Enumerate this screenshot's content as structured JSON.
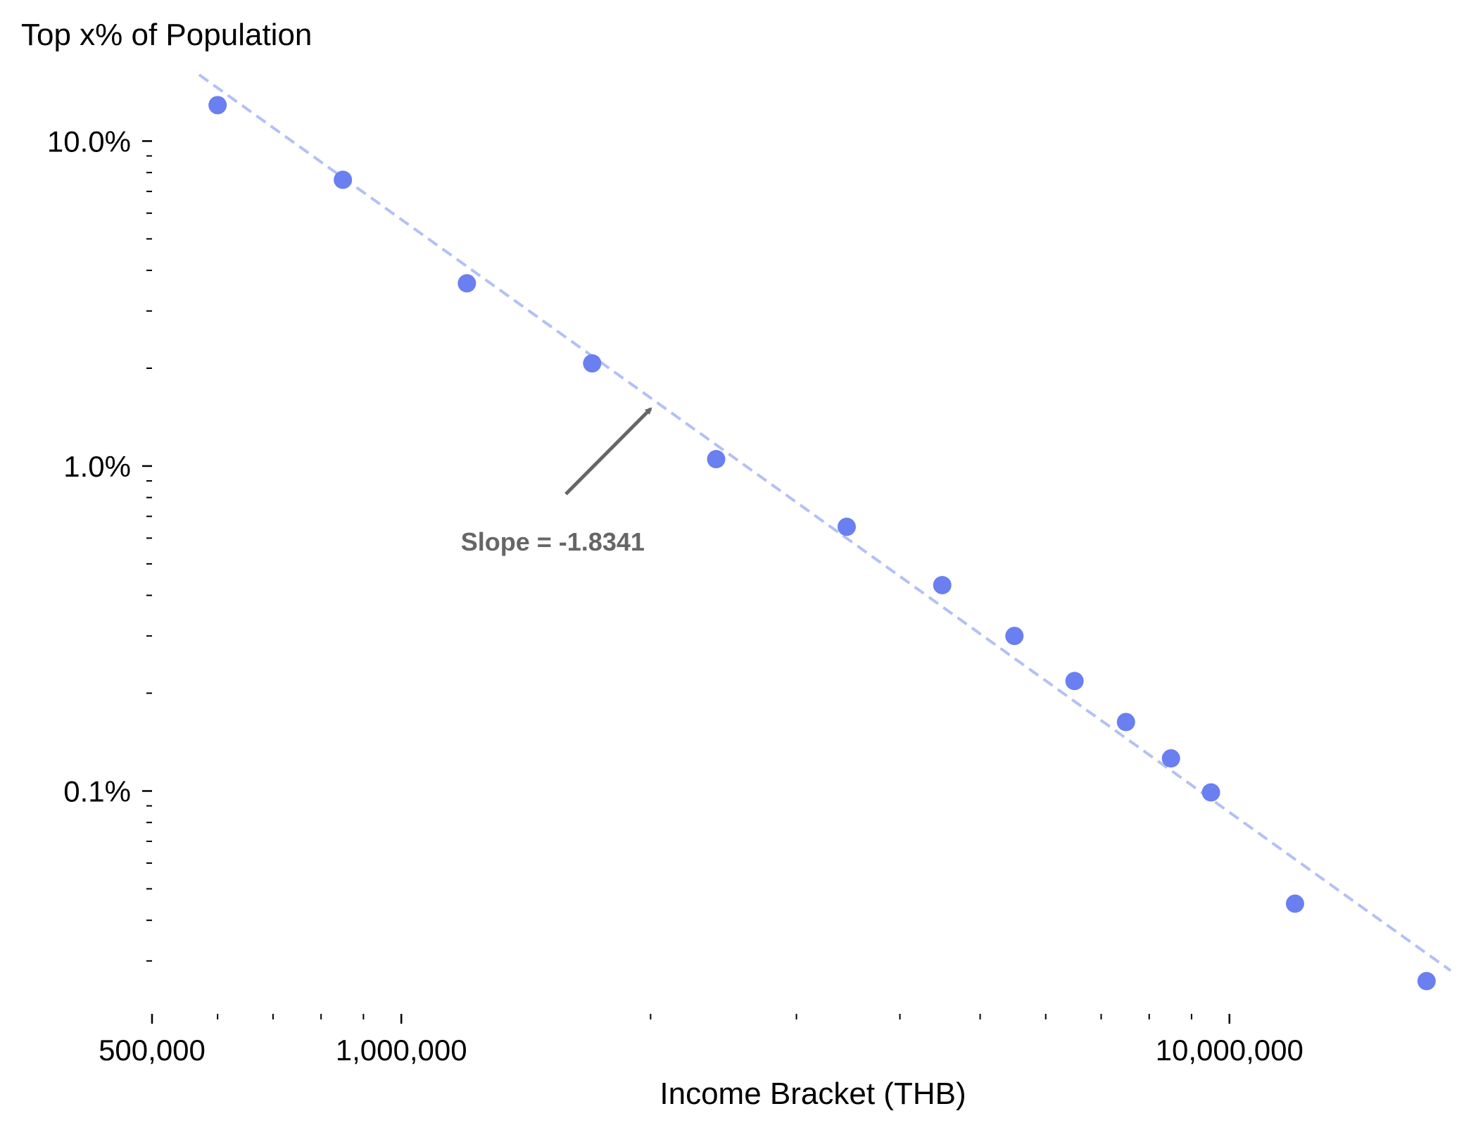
{
  "chart_data": {
    "type": "scatter",
    "title": "",
    "xlabel": "Income Bracket (THB)",
    "ylabel": "Top x% of Population",
    "x_scale": "log",
    "y_scale": "log",
    "xlim": [
      500000,
      19500000
    ],
    "ylim": [
      0.022,
      17
    ],
    "grid": false,
    "x_ticks": [
      {
        "value": 500000,
        "label": "500,000"
      },
      {
        "value": 1000000,
        "label": "1,000,000"
      },
      {
        "value": 10000000,
        "label": "10,000,000"
      }
    ],
    "y_ticks": [
      {
        "value": 10,
        "label": "10.0%"
      },
      {
        "value": 1,
        "label": "1.0%"
      },
      {
        "value": 0.1,
        "label": "0.1%"
      }
    ],
    "series": [
      {
        "type": "scatter",
        "color": "#6a7ff0",
        "points": [
          {
            "x": 600000,
            "y": 12.9
          },
          {
            "x": 850000,
            "y": 7.6
          },
          {
            "x": 1200000,
            "y": 3.65
          },
          {
            "x": 1700000,
            "y": 2.07
          },
          {
            "x": 2400000,
            "y": 1.05
          },
          {
            "x": 3450000,
            "y": 0.65
          },
          {
            "x": 4500000,
            "y": 0.43
          },
          {
            "x": 5500000,
            "y": 0.3
          },
          {
            "x": 6500000,
            "y": 0.218
          },
          {
            "x": 7500000,
            "y": 0.163
          },
          {
            "x": 8500000,
            "y": 0.126
          },
          {
            "x": 9500000,
            "y": 0.099
          },
          {
            "x": 12000000,
            "y": 0.045
          },
          {
            "x": 17300000,
            "y": 0.026
          }
        ]
      },
      {
        "type": "line",
        "style": "dashed",
        "color": "#b4c0f5",
        "points": [
          {
            "x": 570000,
            "y": 16
          },
          {
            "x": 18500000,
            "y": 0.028
          }
        ]
      }
    ],
    "annotations": [
      {
        "text": "Slope = -1.8341",
        "color": "#666666",
        "arrow_to": {
          "x": 2000000,
          "y": 1.5
        },
        "arrow_from": {
          "x": 1580000,
          "y": 0.82
        },
        "text_at": {
          "x": 1180000,
          "y": 0.55
        }
      }
    ]
  }
}
